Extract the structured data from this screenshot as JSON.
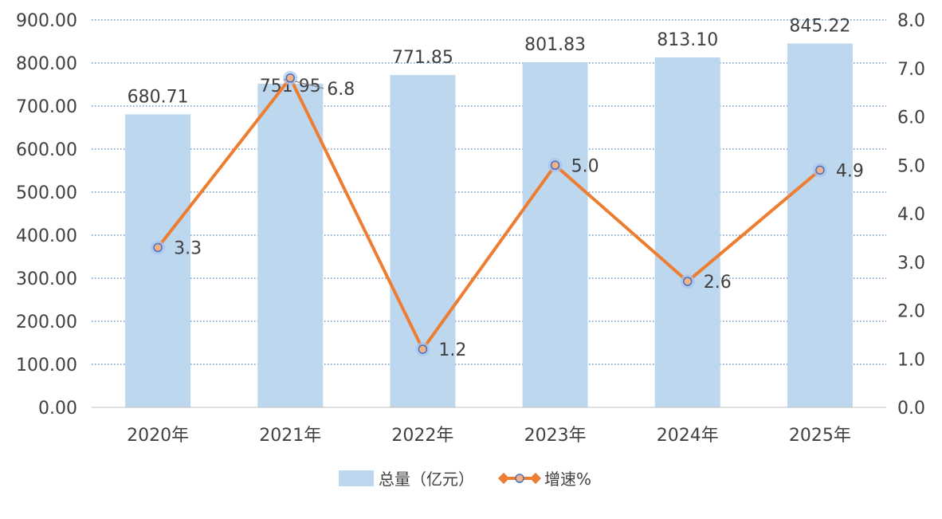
{
  "chart_data": {
    "type": "bar",
    "categories": [
      "2020年",
      "2021年",
      "2022年",
      "2023年",
      "2024年",
      "2025年"
    ],
    "series": [
      {
        "name": "总量（亿元）",
        "type": "bar",
        "axis": "left",
        "values": [
          680.71,
          751.95,
          771.85,
          801.83,
          813.1,
          845.22
        ],
        "labels": [
          "680.71",
          "751.95",
          "771.85",
          "801.83",
          "813.10",
          "845.22"
        ],
        "color": "#bdd7ee"
      },
      {
        "name": "增速%",
        "type": "line",
        "axis": "right",
        "values": [
          3.3,
          6.8,
          1.2,
          5.0,
          2.6,
          4.9
        ],
        "labels": [
          "3.3",
          "6.8",
          "1.2",
          "5.0",
          "2.6",
          "4.9"
        ],
        "color": "#ed7d31",
        "marker_fill": "#f4b183",
        "marker_stroke": "#4472c4"
      }
    ],
    "y_left": {
      "lim": [
        0,
        900
      ],
      "ticks": [
        "0.00",
        "100.00",
        "200.00",
        "300.00",
        "400.00",
        "500.00",
        "600.00",
        "700.00",
        "800.00",
        "900.00"
      ]
    },
    "y_right": {
      "lim": [
        0,
        8
      ],
      "ticks": [
        "0.0",
        "1.0",
        "2.0",
        "3.0",
        "4.0",
        "5.0",
        "6.0",
        "7.0",
        "8.0"
      ]
    },
    "title": "",
    "xlabel": "",
    "ylabel": "",
    "grid": true,
    "grid_style": "dotted",
    "grid_color": "#4a7fc0",
    "legend_position": "bottom-center"
  }
}
